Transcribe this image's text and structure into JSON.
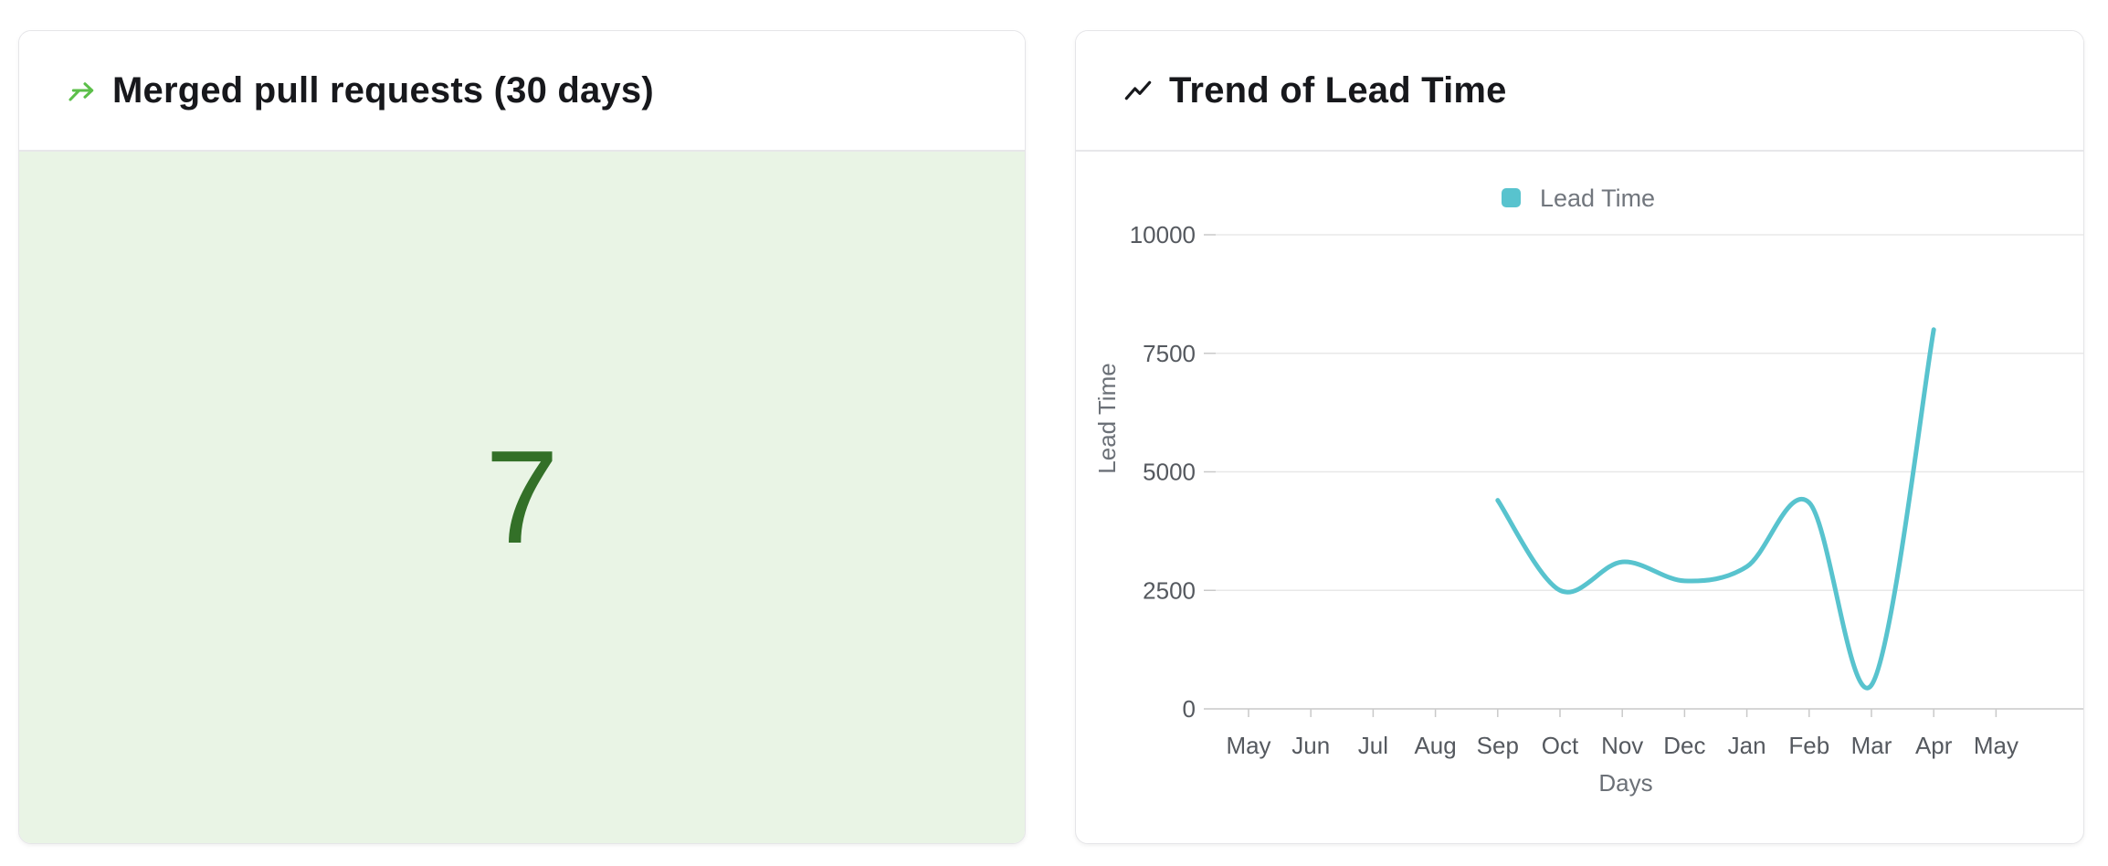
{
  "theme": {
    "green_accent": "#5cbf4a",
    "green_bg": "#e9f4e5",
    "green_number": "#337028",
    "line_color": "#58c3ce",
    "header_text": "#17181c"
  },
  "cards": {
    "merged_prs": {
      "icon": "merge-icon",
      "title": "Merged pull requests (30 days)",
      "value": "7"
    },
    "lead_time_trend": {
      "icon": "trend-up-icon",
      "title": "Trend of Lead Time"
    }
  },
  "chart_data": {
    "type": "line",
    "title": "Trend of Lead Time",
    "categories": [
      "May",
      "Jun",
      "Jul",
      "Aug",
      "Sep",
      "Oct",
      "Nov",
      "Dec",
      "Jan",
      "Feb",
      "Mar",
      "Apr",
      "May"
    ],
    "series": [
      {
        "name": "Lead Time",
        "color": "#58c3ce",
        "values": [
          null,
          null,
          null,
          null,
          4400,
          2500,
          3100,
          2700,
          3000,
          4350,
          500,
          8000,
          null
        ]
      }
    ],
    "xlabel": "Days",
    "ylabel": "Lead Time",
    "ylim": [
      0,
      10000
    ],
    "yticks": [
      0,
      2500,
      5000,
      7500,
      10000
    ],
    "grid": true,
    "legend_position": "top",
    "smooth": true
  }
}
